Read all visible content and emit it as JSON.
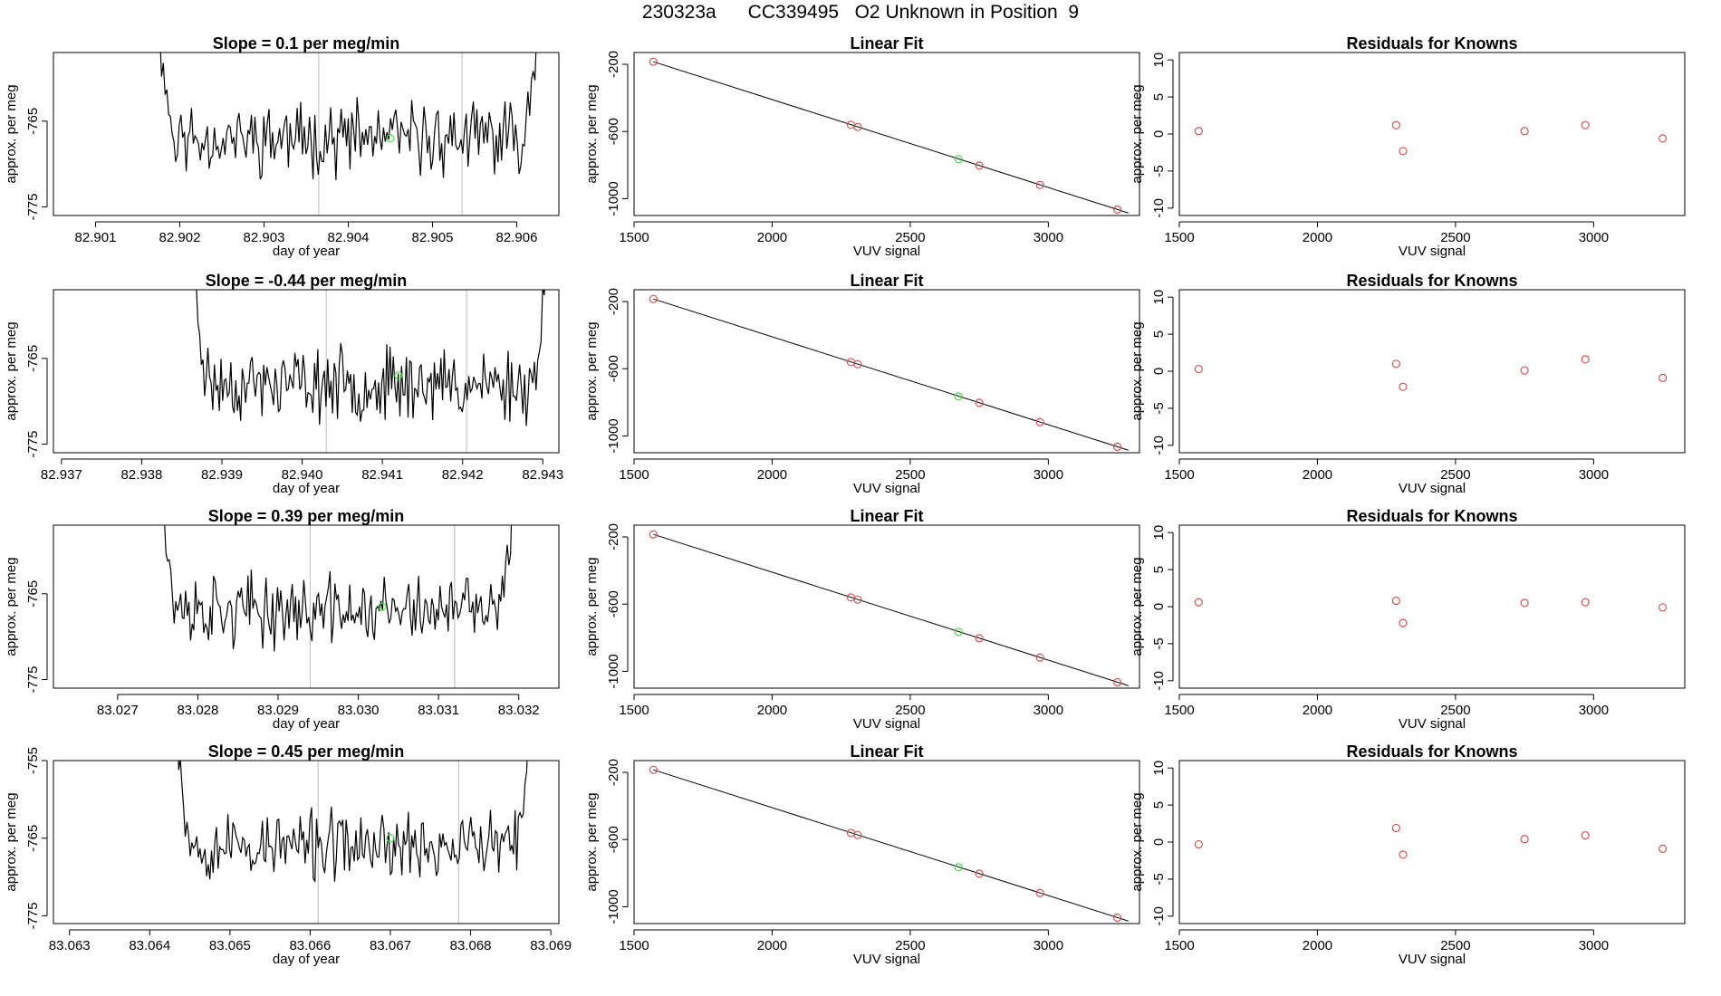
{
  "title": "230323a      CC339495   O2 Unknown in Position  9",
  "colors": {
    "line": "#000000",
    "known": "#cd5555",
    "unknown": "#44dd44",
    "vline": "#bbbbbb"
  },
  "chart_data": [
    {
      "type": "line",
      "panel": "row1-time",
      "title": "Slope =  0.1  per meg/min",
      "xlabel": "day of year",
      "ylabel": "approx. per meg",
      "xlim": [
        82.9005,
        82.9065
      ],
      "ylim": [
        -776,
        -757
      ],
      "xticks": [
        "82.901",
        "82.902",
        "82.903",
        "82.904",
        "82.905",
        "82.906"
      ],
      "xtick_values": [
        82.901,
        82.902,
        82.903,
        82.904,
        82.905,
        82.906
      ],
      "yticks": [
        "-775",
        "-765"
      ],
      "ytick_values": [
        -775,
        -765
      ],
      "trace_start": 82.9017,
      "trace_end": 82.9063,
      "noise_mean": -767,
      "noise_amp": 3.2,
      "seed": 11,
      "vlines": [
        82.90365,
        82.90535
      ],
      "unknown_point": {
        "x": 82.9045,
        "y": -767
      }
    },
    {
      "type": "scatter",
      "panel": "row1-fit",
      "title": "Linear Fit",
      "xlabel": "VUV signal",
      "ylabel": "approx. per meg",
      "xlim": [
        1500,
        3330
      ],
      "ylim": [
        -1100,
        -130
      ],
      "xticks": [
        "1500",
        "2000",
        "2500",
        "3000"
      ],
      "xtick_values": [
        1500,
        2000,
        2500,
        3000
      ],
      "yticks": [
        "-200",
        "-600",
        "-1000"
      ],
      "ytick_values": [
        -200,
        -600,
        -1000
      ],
      "fit_line": {
        "x": [
          1570,
          3290
        ],
        "y": [
          -185,
          -1085
        ]
      },
      "knowns": {
        "x": [
          1570,
          2285,
          2310,
          2750,
          2970,
          3250
        ],
        "y": [
          -185,
          -560,
          -573,
          -803,
          -918,
          -1065
        ]
      },
      "unknown": {
        "x": 2675,
        "y": -765
      }
    },
    {
      "type": "scatter",
      "panel": "row1-resid",
      "title": "Residuals for Knowns",
      "xlabel": "VUV signal",
      "ylabel": "approx. per meg",
      "xlim": [
        1500,
        3330
      ],
      "ylim": [
        -11,
        11
      ],
      "xticks": [
        "1500",
        "2000",
        "2500",
        "3000"
      ],
      "xtick_values": [
        1500,
        2000,
        2500,
        3000
      ],
      "yticks": [
        "-10",
        "-5",
        "0",
        "5",
        "10"
      ],
      "ytick_values": [
        -10,
        -5,
        0,
        5,
        10
      ],
      "x": [
        1570,
        2285,
        2310,
        2750,
        2970,
        3250
      ],
      "y": [
        0.4,
        1.2,
        -2.3,
        0.4,
        1.2,
        -0.6
      ]
    },
    {
      "type": "line",
      "panel": "row2-time",
      "title": "Slope =  -0.44  per meg/min",
      "xlabel": "day of year",
      "ylabel": "approx. per meg",
      "xlim": [
        82.9369,
        82.9432
      ],
      "ylim": [
        -776,
        -757
      ],
      "xticks": [
        "82.937",
        "82.938",
        "82.939",
        "82.940",
        "82.941",
        "82.942",
        "82.943"
      ],
      "xtick_values": [
        82.937,
        82.938,
        82.939,
        82.94,
        82.941,
        82.942,
        82.943
      ],
      "yticks": [
        "-775",
        "-765"
      ],
      "ytick_values": [
        -775,
        -765
      ],
      "trace_start": 82.9386,
      "trace_end": 82.9431,
      "noise_mean": -768,
      "noise_amp": 3.2,
      "seed": 23,
      "vlines": [
        82.9403,
        82.94205
      ],
      "unknown_point": {
        "x": 82.9412,
        "y": -767
      }
    },
    {
      "type": "scatter",
      "panel": "row2-fit",
      "title": "Linear Fit",
      "xlabel": "VUV signal",
      "ylabel": "approx. per meg",
      "xlim": [
        1500,
        3330
      ],
      "ylim": [
        -1100,
        -130
      ],
      "xticks": [
        "1500",
        "2000",
        "2500",
        "3000"
      ],
      "xtick_values": [
        1500,
        2000,
        2500,
        3000
      ],
      "yticks": [
        "-200",
        "-600",
        "-1000"
      ],
      "ytick_values": [
        -200,
        -600,
        -1000
      ],
      "fit_line": {
        "x": [
          1570,
          3290
        ],
        "y": [
          -185,
          -1085
        ]
      },
      "knowns": {
        "x": [
          1570,
          2285,
          2310,
          2750,
          2970,
          3250
        ],
        "y": [
          -185,
          -560,
          -573,
          -803,
          -918,
          -1065
        ]
      },
      "unknown": {
        "x": 2675,
        "y": -765
      }
    },
    {
      "type": "scatter",
      "panel": "row2-resid",
      "title": "Residuals for Knowns",
      "xlabel": "VUV signal",
      "ylabel": "approx. per meg",
      "xlim": [
        1500,
        3330
      ],
      "ylim": [
        -11,
        11
      ],
      "xticks": [
        "1500",
        "2000",
        "2500",
        "3000"
      ],
      "xtick_values": [
        1500,
        2000,
        2500,
        3000
      ],
      "yticks": [
        "-10",
        "-5",
        "0",
        "5",
        "10"
      ],
      "ytick_values": [
        -10,
        -5,
        0,
        5,
        10
      ],
      "x": [
        1570,
        2285,
        2310,
        2750,
        2970,
        3250
      ],
      "y": [
        0.3,
        1.0,
        -2.1,
        0.1,
        1.6,
        -0.9
      ]
    },
    {
      "type": "line",
      "panel": "row3-time",
      "title": "Slope =  0.39  per meg/min",
      "xlabel": "day of year",
      "ylabel": "approx. per meg",
      "xlim": [
        83.0262,
        83.0325
      ],
      "ylim": [
        -776,
        -757
      ],
      "xticks": [
        "83.027",
        "83.028",
        "83.029",
        "83.030",
        "83.031",
        "83.032"
      ],
      "xtick_values": [
        83.027,
        83.028,
        83.029,
        83.03,
        83.031,
        83.032
      ],
      "yticks": [
        "-775",
        "-765"
      ],
      "ytick_values": [
        -775,
        -765
      ],
      "trace_start": 83.0275,
      "trace_end": 83.032,
      "noise_mean": -767,
      "noise_amp": 3.2,
      "seed": 37,
      "vlines": [
        83.0294,
        83.0312
      ],
      "unknown_point": {
        "x": 83.0303,
        "y": -766.5
      }
    },
    {
      "type": "scatter",
      "panel": "row3-fit",
      "title": "Linear Fit",
      "xlabel": "VUV signal",
      "ylabel": "approx. per meg",
      "xlim": [
        1500,
        3330
      ],
      "ylim": [
        -1100,
        -130
      ],
      "xticks": [
        "1500",
        "2000",
        "2500",
        "3000"
      ],
      "xtick_values": [
        1500,
        2000,
        2500,
        3000
      ],
      "yticks": [
        "-200",
        "-600",
        "-1000"
      ],
      "ytick_values": [
        -200,
        -600,
        -1000
      ],
      "fit_line": {
        "x": [
          1570,
          3290
        ],
        "y": [
          -185,
          -1085
        ]
      },
      "knowns": {
        "x": [
          1570,
          2285,
          2310,
          2750,
          2970,
          3250
        ],
        "y": [
          -185,
          -560,
          -573,
          -803,
          -918,
          -1065
        ]
      },
      "unknown": {
        "x": 2675,
        "y": -765
      }
    },
    {
      "type": "scatter",
      "panel": "row3-resid",
      "title": "Residuals for Knowns",
      "xlabel": "VUV signal",
      "ylabel": "approx. per meg",
      "xlim": [
        1500,
        3330
      ],
      "ylim": [
        -11,
        11
      ],
      "xticks": [
        "1500",
        "2000",
        "2500",
        "3000"
      ],
      "xtick_values": [
        1500,
        2000,
        2500,
        3000
      ],
      "yticks": [
        "-10",
        "-5",
        "0",
        "5",
        "10"
      ],
      "ytick_values": [
        -10,
        -5,
        0,
        5,
        10
      ],
      "x": [
        1570,
        2285,
        2310,
        2750,
        2970,
        3250
      ],
      "y": [
        0.6,
        0.8,
        -2.2,
        0.5,
        0.6,
        -0.1
      ]
    },
    {
      "type": "line",
      "panel": "row4-time",
      "title": "Slope =  0.45  per meg/min",
      "xlabel": "day of year",
      "ylabel": "approx. per meg",
      "xlim": [
        83.0628,
        83.0691
      ],
      "ylim": [
        -776,
        -755
      ],
      "xticks": [
        "83.063",
        "83.064",
        "83.065",
        "83.066",
        "83.067",
        "83.068",
        "83.069"
      ],
      "xtick_values": [
        83.063,
        83.064,
        83.065,
        83.066,
        83.067,
        83.068,
        83.069
      ],
      "yticks": [
        "-775",
        "-765",
        "-755"
      ],
      "ytick_values": [
        -775,
        -765,
        -755
      ],
      "trace_start": 83.0643,
      "trace_end": 83.0688,
      "noise_mean": -766,
      "noise_amp": 3.4,
      "seed": 53,
      "vlines": [
        83.0661,
        83.06785
      ],
      "unknown_point": {
        "x": 83.067,
        "y": -765
      }
    },
    {
      "type": "scatter",
      "panel": "row4-fit",
      "title": "Linear Fit",
      "xlabel": "VUV signal",
      "ylabel": "approx. per meg",
      "xlim": [
        1500,
        3330
      ],
      "ylim": [
        -1100,
        -130
      ],
      "xticks": [
        "1500",
        "2000",
        "2500",
        "3000"
      ],
      "xtick_values": [
        1500,
        2000,
        2500,
        3000
      ],
      "yticks": [
        "-200",
        "-600",
        "-1000"
      ],
      "ytick_values": [
        -200,
        -600,
        -1000
      ],
      "fit_line": {
        "x": [
          1570,
          3290
        ],
        "y": [
          -185,
          -1085
        ]
      },
      "knowns": {
        "x": [
          1570,
          2285,
          2310,
          2750,
          2970,
          3250
        ],
        "y": [
          -185,
          -560,
          -573,
          -803,
          -918,
          -1065
        ]
      },
      "unknown": {
        "x": 2675,
        "y": -765
      }
    },
    {
      "type": "scatter",
      "panel": "row4-resid",
      "title": "Residuals for Knowns",
      "xlabel": "VUV signal",
      "ylabel": "approx. per meg",
      "xlim": [
        1500,
        3330
      ],
      "ylim": [
        -11,
        11
      ],
      "xticks": [
        "1500",
        "2000",
        "2500",
        "3000"
      ],
      "xtick_values": [
        1500,
        2000,
        2500,
        3000
      ],
      "yticks": [
        "-10",
        "-5",
        "0",
        "5",
        "10"
      ],
      "ytick_values": [
        -10,
        -5,
        0,
        5,
        10
      ],
      "x": [
        1570,
        2285,
        2310,
        2750,
        2970,
        3250
      ],
      "y": [
        -0.3,
        1.9,
        -1.7,
        0.4,
        0.9,
        -0.9
      ]
    }
  ]
}
